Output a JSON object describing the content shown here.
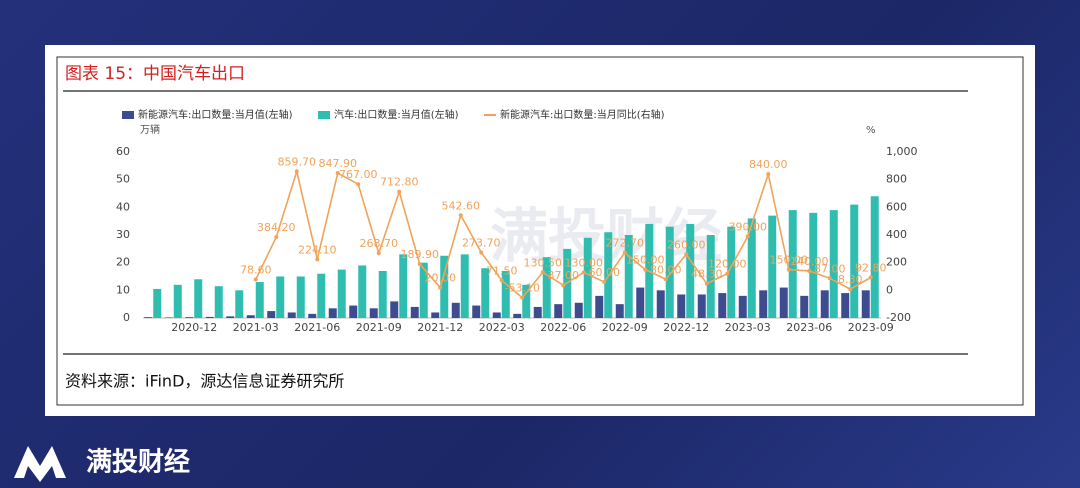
{
  "brand": "满投财经",
  "chart_data": {
    "type": "bar-line",
    "title": "图表 15：中国汽车出口",
    "source": "资料来源：iFinD，源达信息证券研究所",
    "watermark": "满投财经",
    "ylabel": "万辆",
    "y2label": "%",
    "categories": [
      null,
      null,
      "2020-12",
      null,
      null,
      "2021-03",
      null,
      null,
      "2021-06",
      null,
      null,
      "2021-09",
      null,
      null,
      "2021-12",
      null,
      null,
      "2022-03",
      null,
      null,
      "2022-06",
      null,
      null,
      "2022-09",
      null,
      null,
      "2022-12",
      null,
      null,
      "2023-03",
      null,
      null,
      "2023-06",
      null,
      null,
      "2023-09"
    ],
    "ylim": [
      0,
      60
    ],
    "yticks": [
      0,
      10,
      20,
      30,
      40,
      50,
      60
    ],
    "y2lim": [
      -200,
      1000
    ],
    "y2ticks": [
      -200,
      0,
      200,
      400,
      600,
      800,
      {
        "value": 1000,
        "label": "1,000"
      }
    ],
    "series": [
      {
        "name": "新能源汽车:出口数量:当月值(左轴)",
        "type": "bar",
        "color": "#3d4b8f",
        "values": [
          0.3,
          0.2,
          0.3,
          0.4,
          0.6,
          1,
          2.5,
          2,
          1.5,
          3.5,
          4.5,
          3.5,
          6,
          4,
          2,
          5.5,
          4.5,
          2,
          1.5,
          4,
          5,
          5.5,
          8,
          5,
          11,
          10,
          8.5,
          8.5,
          9,
          8,
          10,
          11,
          8,
          10,
          9,
          10
        ]
      },
      {
        "name": "汽车:出口数量:当月值(左轴)",
        "type": "bar",
        "color": "#2fbdb0",
        "values": [
          10.5,
          12,
          14,
          11.5,
          10,
          13,
          15,
          15,
          16,
          17.5,
          19,
          17,
          23,
          20,
          22.5,
          23,
          18,
          17,
          12,
          22,
          25,
          29,
          31,
          30,
          34,
          33,
          34,
          30,
          33,
          36,
          37,
          39,
          38,
          39,
          41,
          44
        ]
      },
      {
        "name": "新能源汽车:出口数量:当月同比(右轴)",
        "type": "line",
        "color": "#f0a35a",
        "axis": "y2",
        "values": [
          null,
          null,
          null,
          null,
          null,
          78.6,
          384.2,
          859.7,
          224.1,
          847.9,
          767,
          268.7,
          712.8,
          189.9,
          20,
          542.6,
          273.7,
          71.5,
          -53.1,
          130.5,
          37,
          130,
          60,
          272.7,
          150,
          80,
          260,
          48.3,
          120,
          390,
          840,
          150,
          140,
          87,
          8.3,
          92.8
        ],
        "value_labels": [
          null,
          null,
          null,
          null,
          null,
          "78.60",
          "384.20",
          "859.70",
          "224.10",
          "847.90",
          "767.00",
          "268.70",
          "712.80",
          "189.90",
          "20.00",
          "542.60",
          "273.70",
          "71.50",
          "-53.10",
          "130.50",
          "37.00",
          "130.00",
          "60.00",
          "272.70",
          "150.00",
          "80.00",
          "260.00",
          "48.30",
          "120.00",
          "390.00",
          "840.00",
          "150.00",
          "140.00",
          "87.00",
          "8.30",
          "92.80"
        ]
      }
    ]
  }
}
